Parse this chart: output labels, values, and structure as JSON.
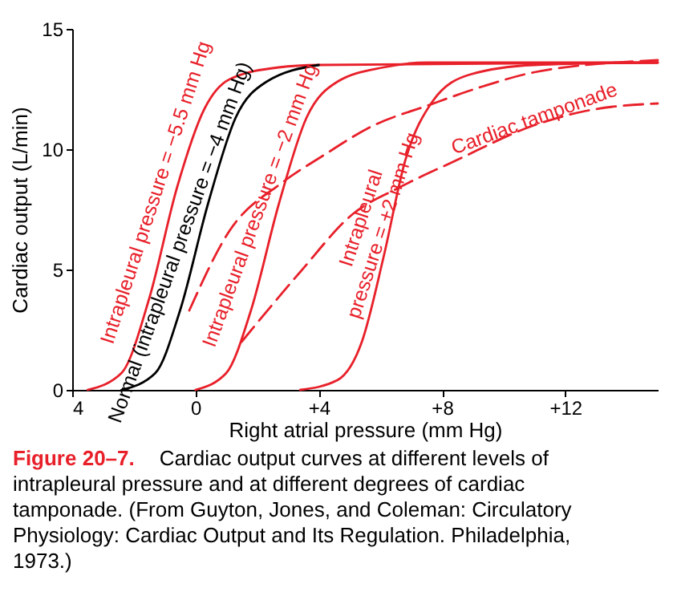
{
  "chart_data": {
    "type": "line",
    "xlabel": "Right atrial pressure (mm Hg)",
    "ylabel": "Cardiac output (L/min)",
    "xlim": [
      -4,
      15
    ],
    "ylim": [
      0,
      15
    ],
    "xticks": [
      {
        "value": -4,
        "label": "4"
      },
      0,
      {
        "value": 4,
        "label": "+4"
      },
      {
        "value": 8,
        "label": "+8"
      },
      {
        "value": 12,
        "label": "+12"
      }
    ],
    "yticks": [
      0,
      5,
      10,
      15
    ],
    "grid": false,
    "marker": "none",
    "series": [
      {
        "color": "#e8202a",
        "line_style": "solid",
        "x": [
          -3.5,
          -2.4,
          -1.5,
          -0.6,
          0.3,
          1.1,
          2.7,
          4.0,
          15
        ],
        "values": [
          0,
          0.7,
          3.8,
          8.4,
          11.7,
          12.9,
          13.4,
          13.5,
          13.6
        ]
      },
      {
        "color": "#000000",
        "line_style": "solid",
        "x": [
          -2.4,
          -1.3,
          -0.5,
          0.4,
          1.3,
          2.3,
          4.0
        ],
        "values": [
          0,
          0.7,
          3.3,
          7.7,
          11.3,
          12.8,
          13.5
        ]
      },
      {
        "color": "#e8202a",
        "line_style": "solid",
        "x": [
          0,
          1.0,
          1.8,
          2.7,
          3.6,
          4.6,
          6.1,
          7.5,
          15
        ],
        "values": [
          0,
          0.7,
          3.3,
          7.7,
          11.3,
          12.8,
          13.4,
          13.6,
          13.6
        ]
      },
      {
        "color": "#e8202a",
        "line_style": "solid",
        "x": [
          3.4,
          4.6,
          5.4,
          6.1,
          6.8,
          7.7,
          8.9,
          11.0,
          15
        ],
        "values": [
          0,
          0.4,
          2.0,
          5.5,
          9.5,
          12.0,
          13.1,
          13.5,
          13.6
        ]
      },
      {
        "color": "#e8202a",
        "line_style": "dashed",
        "x": [
          -0.2,
          1.1,
          2.8,
          4.1,
          5.8,
          7.5,
          9.3,
          11.0,
          15
        ],
        "values": [
          3.3,
          6.6,
          8.6,
          9.7,
          11.0,
          11.8,
          12.6,
          13.2,
          13.7
        ]
      },
      {
        "color": "#e8202a",
        "line_style": "dashed",
        "x": [
          1.5,
          3.4,
          5.1,
          6.6,
          8.4,
          11.0,
          12.7,
          15
        ],
        "values": [
          2.0,
          4.9,
          7.3,
          8.4,
          9.5,
          11.0,
          11.6,
          11.9
        ]
      }
    ],
    "annotations": [
      "Intrapleural pressure = −5.5 mm Hg",
      "Normal (intrapleural pressure = −4 mm Hg)",
      "Intrapleural pressure = −2 mm Hg",
      "Intrapleural pressure = +2 mm Hg",
      "Cardiac tamponade",
      "Figure 20–7.",
      "Cardiac output curves at different levels of intrapleural pressure and at different degrees of cardiac tamponade. (From Guyton, Jones, and Coleman: Circulatory Physiology: Cardiac Output and Its Regulation. Philadelphia, 1973.)"
    ]
  }
}
